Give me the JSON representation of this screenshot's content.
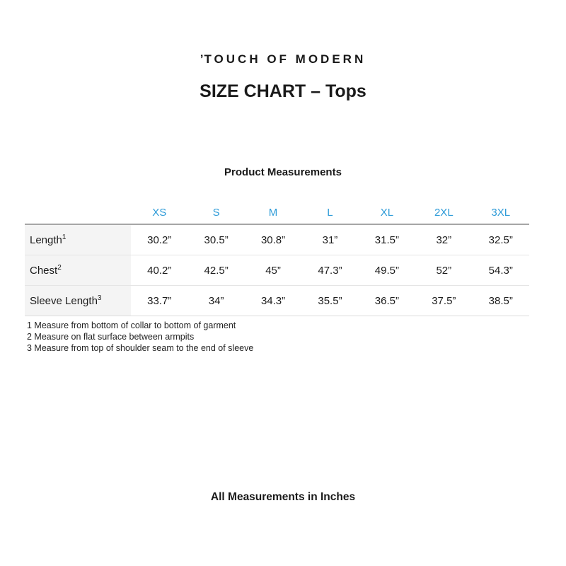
{
  "brand": {
    "mark": "’",
    "name": "TOUCH OF MODERN"
  },
  "title": "SIZE CHART – Tops",
  "section_title": "Product Measurements",
  "table": {
    "sizes": [
      "XS",
      "S",
      "M",
      "L",
      "XL",
      "2XL",
      "3XL"
    ],
    "rows": [
      {
        "label": "Length",
        "footnote_ref": "1",
        "values": [
          "30.2”",
          "30.5”",
          "30.8”",
          "31”",
          "31.5”",
          "32”",
          "32.5”"
        ]
      },
      {
        "label": "Chest",
        "footnote_ref": "2",
        "values": [
          "40.2”",
          "42.5”",
          "45”",
          "47.3”",
          "49.5”",
          "52”",
          "54.3”"
        ]
      },
      {
        "label": "Sleeve Length",
        "footnote_ref": "3",
        "values": [
          "33.7”",
          "34”",
          "34.3”",
          "35.5”",
          "36.5”",
          "37.5”",
          "38.5”"
        ]
      }
    ]
  },
  "footnotes": [
    "1 Measure from bottom of collar to bottom of garment",
    "2 Measure on flat surface between armpits",
    "3 Measure from top of shoulder seam to the end of sleeve"
  ],
  "footer": "All Measurements in Inches",
  "colors": {
    "size_header_blue": "#2e9bd8",
    "text": "#1c1c1c",
    "label_column_bg": "#f4f4f4",
    "header_border": "#a6a6a6",
    "row_border": "#e5e5e5"
  }
}
